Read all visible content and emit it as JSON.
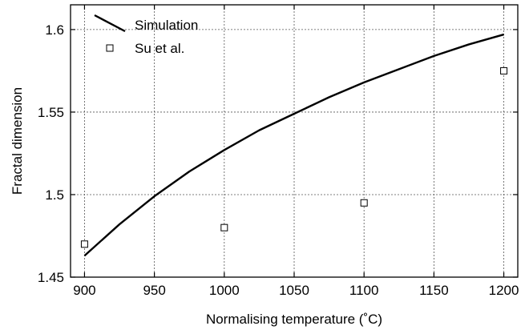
{
  "chart_data": {
    "type": "line",
    "title": "",
    "xlabel": "Normalising temperature (˚C)",
    "ylabel": "Fractal dimension",
    "xlim": [
      890,
      1210
    ],
    "ylim": [
      1.45,
      1.615
    ],
    "x_ticks": [
      900,
      950,
      1000,
      1050,
      1100,
      1150,
      1200
    ],
    "x_tick_labels": [
      "900",
      "950",
      "1000",
      "1050",
      "1100",
      "1150",
      "1200"
    ],
    "y_ticks": [
      1.45,
      1.5,
      1.55,
      1.6
    ],
    "y_tick_labels": [
      "1.45",
      "1.5",
      "1.55",
      "1.6"
    ],
    "grid": true,
    "legend_position": "top-left",
    "series": [
      {
        "name": "Simulation",
        "style": "line",
        "color": "#000000",
        "x": [
          900,
          925,
          950,
          975,
          1000,
          1025,
          1050,
          1075,
          1100,
          1125,
          1150,
          1175,
          1200
        ],
        "y": [
          1.463,
          1.482,
          1.499,
          1.514,
          1.527,
          1.539,
          1.549,
          1.559,
          1.568,
          1.576,
          1.584,
          1.591,
          1.597
        ]
      },
      {
        "name": "Su et al.",
        "style": "markers",
        "marker": "open-square",
        "color": "#000000",
        "x": [
          900,
          1000,
          1100,
          1200
        ],
        "y": [
          1.47,
          1.48,
          1.495,
          1.575
        ]
      }
    ]
  }
}
